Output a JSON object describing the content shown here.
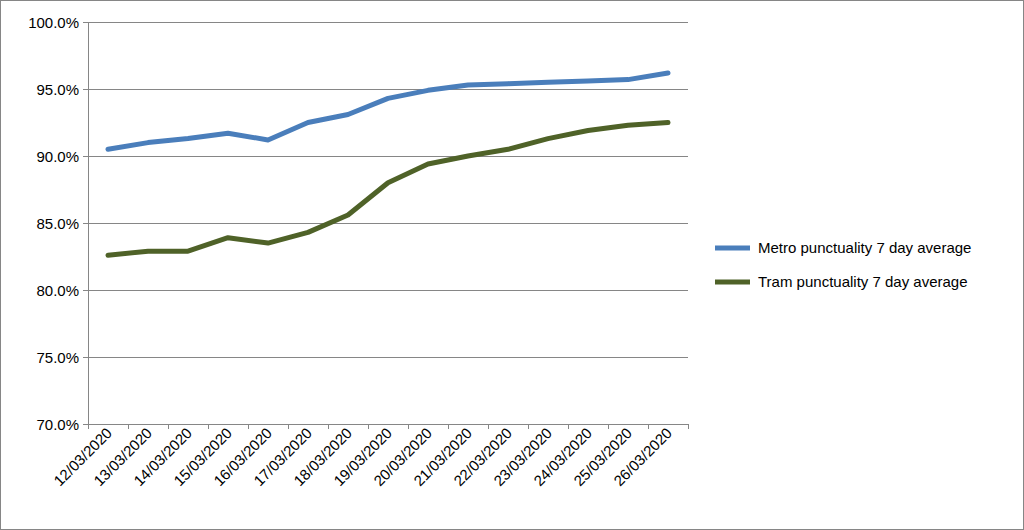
{
  "chart_data": {
    "type": "line",
    "categories": [
      "12/03/2020",
      "13/03/2020",
      "14/03/2020",
      "15/03/2020",
      "16/03/2020",
      "17/03/2020",
      "18/03/2020",
      "19/03/2020",
      "20/03/2020",
      "21/03/2020",
      "22/03/2020",
      "23/03/2020",
      "24/03/2020",
      "25/03/2020",
      "26/03/2020"
    ],
    "series": [
      {
        "name": "Metro punctuality 7 day average",
        "color": "#4a7ebb",
        "values": [
          90.5,
          91.0,
          91.3,
          91.7,
          91.2,
          92.5,
          93.1,
          94.3,
          94.9,
          95.3,
          95.4,
          95.5,
          95.6,
          95.7,
          96.2
        ]
      },
      {
        "name": "Tram punctuality 7 day average",
        "color": "#4f6228",
        "values": [
          82.6,
          82.9,
          82.9,
          83.9,
          83.5,
          84.3,
          85.6,
          88.0,
          89.4,
          90.0,
          90.5,
          91.3,
          91.9,
          92.3,
          92.5
        ]
      }
    ],
    "ylim": [
      70,
      100
    ],
    "yticks": [
      {
        "value": 70,
        "label": "70.0%"
      },
      {
        "value": 75,
        "label": "75.0%"
      },
      {
        "value": 80,
        "label": "80.0%"
      },
      {
        "value": 85,
        "label": "85.0%"
      },
      {
        "value": 90,
        "label": "90.0%"
      },
      {
        "value": 95,
        "label": "95.0%"
      },
      {
        "value": 100,
        "label": "100.0%"
      }
    ],
    "grid": true,
    "legend": "right"
  }
}
